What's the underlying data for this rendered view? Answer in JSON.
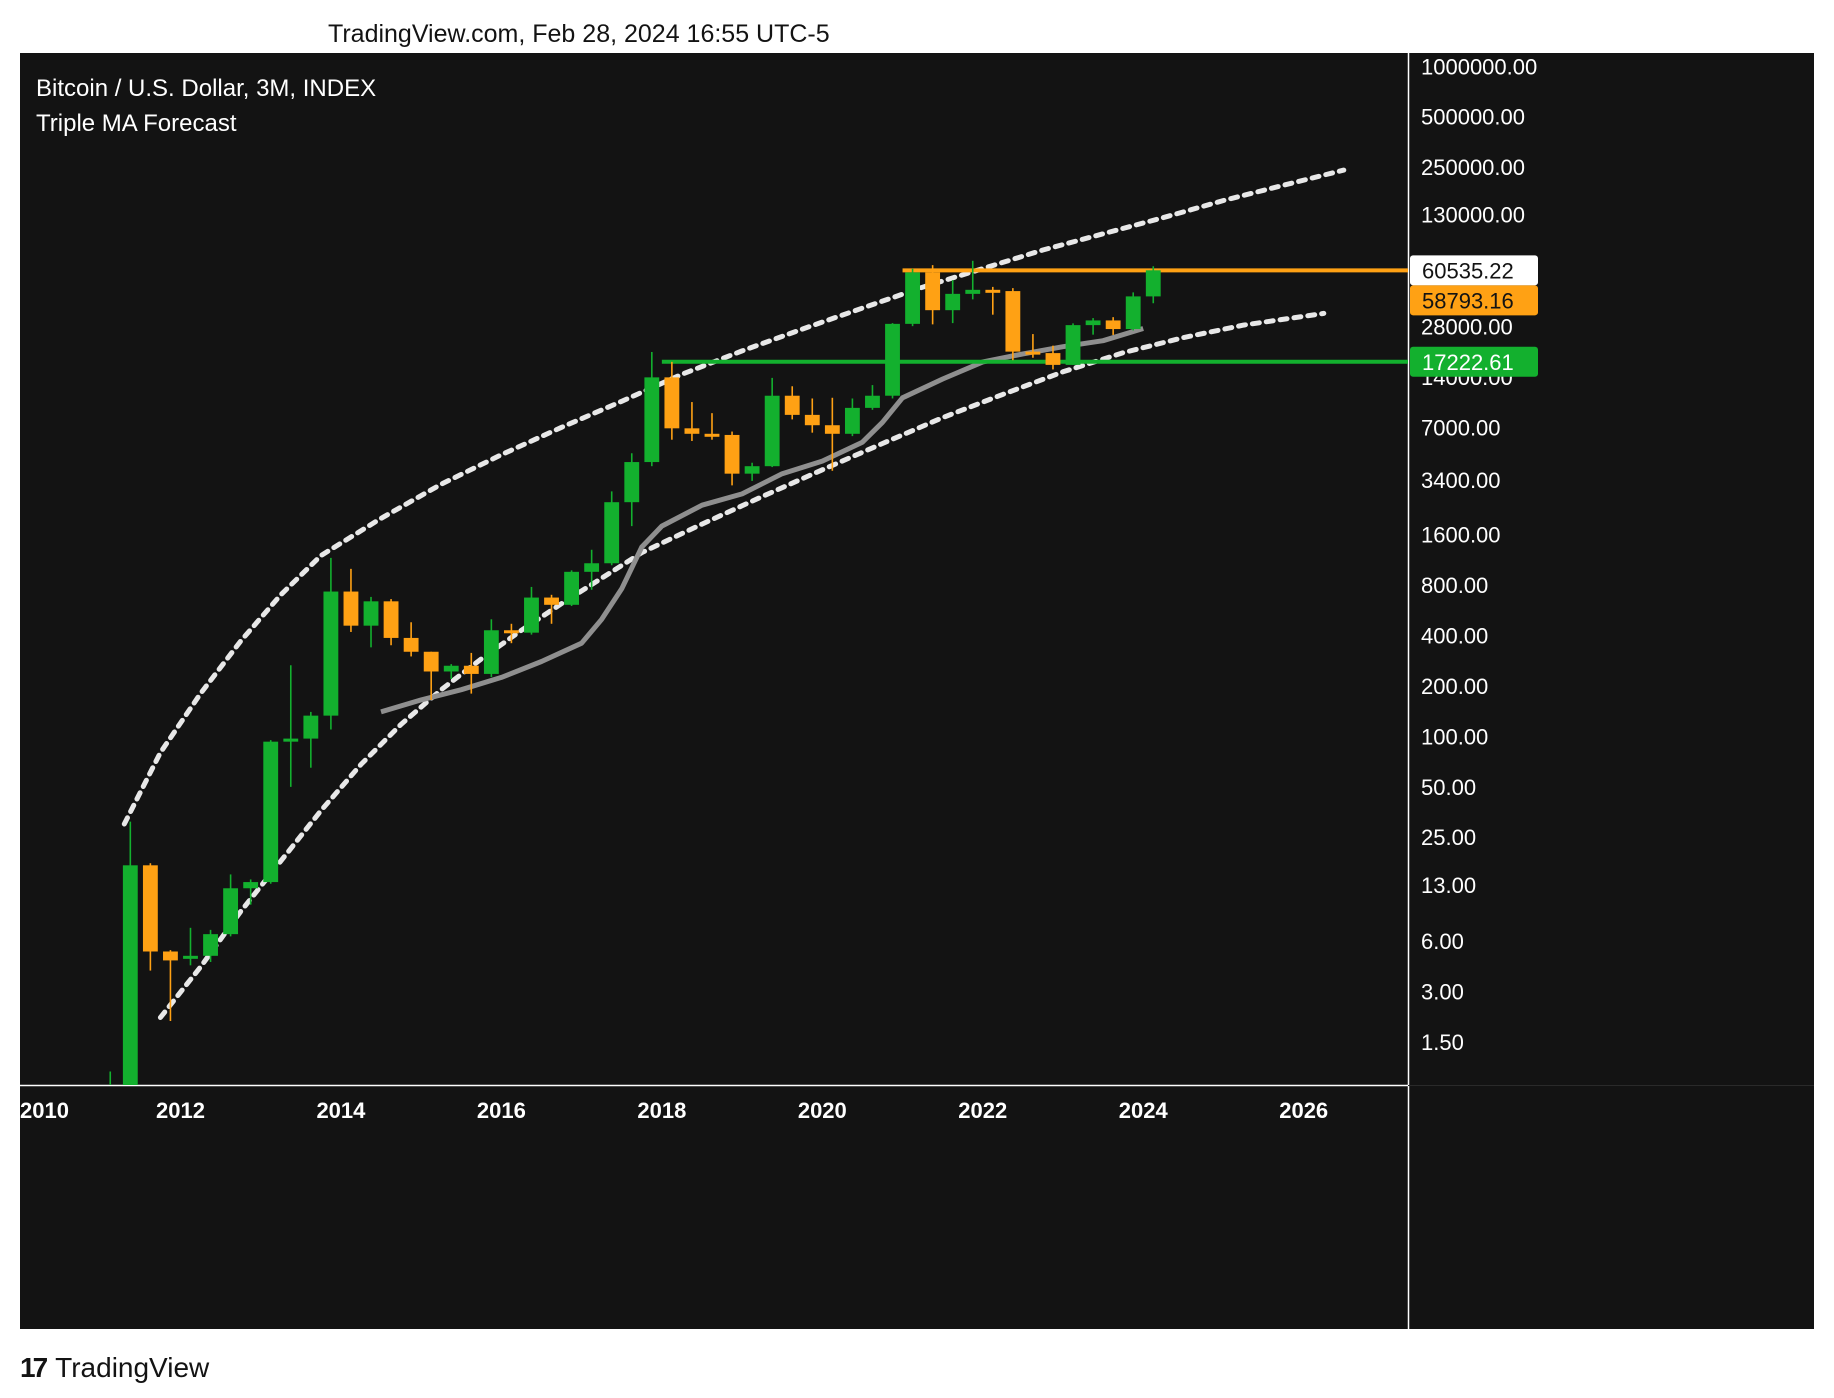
{
  "header": {
    "stamp": "TradingView.com, Feb 28, 2024 16:55 UTC-5"
  },
  "legend": {
    "symbol": "Bitcoin / U.S. Dollar, 3M, INDEX",
    "indicator": "Triple MA Forecast"
  },
  "footer": {
    "brand": "TradingView",
    "brand_mark": "17"
  },
  "colors": {
    "background": "#131313",
    "up": "#13b02e",
    "down": "#ffa114",
    "ma": "#8f8f8f",
    "band": "#e8e8e8",
    "axis_text": "#ffffff",
    "resistance": "#ffa114",
    "support": "#13b02e"
  },
  "chart_data": {
    "type": "candlestick",
    "interval": "3M",
    "y_scale": "log",
    "y_ticks": [
      1.5,
      3,
      6,
      13,
      25,
      50,
      100,
      200,
      400,
      800,
      1600,
      3400,
      7000,
      14000,
      28000,
      130000,
      250000,
      500000,
      1000000
    ],
    "y_tick_labels": [
      "1.50",
      "3.00",
      "6.00",
      "13.00",
      "25.00",
      "50.00",
      "100.00",
      "200.00",
      "400.00",
      "800.00",
      "1600.00",
      "3400.00",
      "7000.00",
      "14000.00",
      "28000.00",
      "130000.00",
      "250000.00",
      "500000.00",
      "1000000.00"
    ],
    "x_tick_labels": [
      "2010",
      "2012",
      "2014",
      "2016",
      "2018",
      "2020",
      "2022",
      "2024",
      "2026"
    ],
    "x_range": [
      2010.0,
      2027.3
    ],
    "y_range": [
      0.83,
      1200000
    ],
    "candles": [
      {
        "t": 2011.0,
        "o": 0.5,
        "h": 1.0,
        "l": 0.3,
        "c": 0.8
      },
      {
        "t": 2011.25,
        "o": 0.8,
        "h": 31.0,
        "l": 0.7,
        "c": 17.0
      },
      {
        "t": 2011.5,
        "o": 17.0,
        "h": 17.5,
        "l": 4.0,
        "c": 5.2
      },
      {
        "t": 2011.75,
        "o": 5.2,
        "h": 5.3,
        "l": 2.0,
        "c": 4.6
      },
      {
        "t": 2012.0,
        "o": 4.7,
        "h": 7.2,
        "l": 4.3,
        "c": 4.9
      },
      {
        "t": 2012.25,
        "o": 4.9,
        "h": 7.0,
        "l": 4.5,
        "c": 6.6
      },
      {
        "t": 2012.5,
        "o": 6.6,
        "h": 15.0,
        "l": 6.4,
        "c": 12.4
      },
      {
        "t": 2012.75,
        "o": 12.4,
        "h": 14.0,
        "l": 9.9,
        "c": 13.5
      },
      {
        "t": 2013.0,
        "o": 13.5,
        "h": 95.0,
        "l": 13.2,
        "c": 93.0
      },
      {
        "t": 2013.25,
        "o": 93.0,
        "h": 266.0,
        "l": 50.0,
        "c": 97.0
      },
      {
        "t": 2013.5,
        "o": 97.0,
        "h": 140.0,
        "l": 65.0,
        "c": 133.0
      },
      {
        "t": 2013.75,
        "o": 133.0,
        "h": 1163.0,
        "l": 110.0,
        "c": 732.0
      },
      {
        "t": 2014.0,
        "o": 732.0,
        "h": 1000.0,
        "l": 420.0,
        "c": 458.0
      },
      {
        "t": 2014.25,
        "o": 458.0,
        "h": 680.0,
        "l": 340.0,
        "c": 640.0
      },
      {
        "t": 2014.5,
        "o": 640.0,
        "h": 660.0,
        "l": 350.0,
        "c": 387.0
      },
      {
        "t": 2014.75,
        "o": 387.0,
        "h": 480.0,
        "l": 300.0,
        "c": 320.0
      },
      {
        "t": 2015.0,
        "o": 320.0,
        "h": 320.0,
        "l": 165.0,
        "c": 244.0
      },
      {
        "t": 2015.25,
        "o": 244.0,
        "h": 270.0,
        "l": 220.0,
        "c": 264.0
      },
      {
        "t": 2015.5,
        "o": 264.0,
        "h": 315.0,
        "l": 180.0,
        "c": 236.0
      },
      {
        "t": 2015.75,
        "o": 236.0,
        "h": 500.0,
        "l": 226.0,
        "c": 430.0
      },
      {
        "t": 2016.0,
        "o": 430.0,
        "h": 470.0,
        "l": 360.0,
        "c": 416.0
      },
      {
        "t": 2016.25,
        "o": 416.0,
        "h": 780.0,
        "l": 405.0,
        "c": 674.0
      },
      {
        "t": 2016.5,
        "o": 674.0,
        "h": 700.0,
        "l": 470.0,
        "c": 610.0
      },
      {
        "t": 2016.75,
        "o": 610.0,
        "h": 980.0,
        "l": 600.0,
        "c": 960.0
      },
      {
        "t": 2017.0,
        "o": 960.0,
        "h": 1300.0,
        "l": 750.0,
        "c": 1080.0
      },
      {
        "t": 2017.25,
        "o": 1080.0,
        "h": 2900.0,
        "l": 1050.0,
        "c": 2500.0
      },
      {
        "t": 2017.5,
        "o": 2500.0,
        "h": 4900.0,
        "l": 1800.0,
        "c": 4340.0
      },
      {
        "t": 2017.75,
        "o": 4340.0,
        "h": 19700.0,
        "l": 4100.0,
        "c": 13900.0
      },
      {
        "t": 2018.0,
        "o": 13900.0,
        "h": 17200.0,
        "l": 5900.0,
        "c": 6900.0
      },
      {
        "t": 2018.25,
        "o": 6900.0,
        "h": 9900.0,
        "l": 5800.0,
        "c": 6400.0
      },
      {
        "t": 2018.5,
        "o": 6400.0,
        "h": 8500.0,
        "l": 5900.0,
        "c": 6300.0
      },
      {
        "t": 2018.75,
        "o": 6300.0,
        "h": 6600.0,
        "l": 3150.0,
        "c": 3700.0
      },
      {
        "t": 2019.0,
        "o": 3700.0,
        "h": 4300.0,
        "l": 3350.0,
        "c": 4100.0
      },
      {
        "t": 2019.25,
        "o": 4100.0,
        "h": 13800.0,
        "l": 4050.0,
        "c": 10800.0
      },
      {
        "t": 2019.5,
        "o": 10800.0,
        "h": 12300.0,
        "l": 7800.0,
        "c": 8300.0
      },
      {
        "t": 2019.75,
        "o": 8300.0,
        "h": 10400.0,
        "l": 6500.0,
        "c": 7200.0
      },
      {
        "t": 2020.0,
        "o": 7200.0,
        "h": 10500.0,
        "l": 3850.0,
        "c": 6400.0
      },
      {
        "t": 2020.25,
        "o": 6400.0,
        "h": 10400.0,
        "l": 6200.0,
        "c": 9140.0
      },
      {
        "t": 2020.5,
        "o": 9140.0,
        "h": 12500.0,
        "l": 8900.0,
        "c": 10800.0
      },
      {
        "t": 2020.75,
        "o": 10800.0,
        "h": 29300.0,
        "l": 10400.0,
        "c": 29000.0
      },
      {
        "t": 2021.0,
        "o": 29000.0,
        "h": 61800.0,
        "l": 28100.0,
        "c": 58800.0
      },
      {
        "t": 2021.25,
        "o": 58800.0,
        "h": 65000.0,
        "l": 28800.0,
        "c": 35000.0
      },
      {
        "t": 2021.5,
        "o": 35000.0,
        "h": 52900.0,
        "l": 29300.0,
        "c": 43800.0
      },
      {
        "t": 2021.75,
        "o": 43800.0,
        "h": 69000.0,
        "l": 40600.0,
        "c": 46300.0
      },
      {
        "t": 2022.0,
        "o": 46300.0,
        "h": 48200.0,
        "l": 32900.0,
        "c": 45500.0
      },
      {
        "t": 2022.25,
        "o": 45500.0,
        "h": 47400.0,
        "l": 17600.0,
        "c": 19800.0
      },
      {
        "t": 2022.5,
        "o": 19800.0,
        "h": 25200.0,
        "l": 18200.0,
        "c": 19400.0
      },
      {
        "t": 2022.75,
        "o": 19400.0,
        "h": 21500.0,
        "l": 15500.0,
        "c": 16500.0
      },
      {
        "t": 2023.0,
        "o": 16500.0,
        "h": 29200.0,
        "l": 16500.0,
        "c": 28500.0
      },
      {
        "t": 2023.25,
        "o": 28500.0,
        "h": 31400.0,
        "l": 25000.0,
        "c": 30400.0
      },
      {
        "t": 2023.5,
        "o": 30400.0,
        "h": 31800.0,
        "l": 24900.0,
        "c": 27000.0
      },
      {
        "t": 2023.75,
        "o": 27000.0,
        "h": 44700.0,
        "l": 26500.0,
        "c": 42300.0
      },
      {
        "t": 2024.0,
        "o": 42300.0,
        "h": 64000.0,
        "l": 38500.0,
        "c": 60535.22
      }
    ],
    "ma_line": [
      [
        2014.5,
        140
      ],
      [
        2015.0,
        165
      ],
      [
        2015.5,
        190
      ],
      [
        2016.0,
        225
      ],
      [
        2016.5,
        280
      ],
      [
        2017.0,
        360
      ],
      [
        2017.25,
        500
      ],
      [
        2017.5,
        760
      ],
      [
        2017.75,
        1350
      ],
      [
        2018.0,
        1800
      ],
      [
        2018.5,
        2400
      ],
      [
        2019.0,
        2800
      ],
      [
        2019.5,
        3700
      ],
      [
        2020.0,
        4400
      ],
      [
        2020.5,
        5700
      ],
      [
        2020.75,
        7500
      ],
      [
        2021.0,
        10500
      ],
      [
        2021.5,
        13600
      ],
      [
        2022.0,
        17200
      ],
      [
        2022.5,
        19200
      ],
      [
        2023.0,
        21200
      ],
      [
        2023.5,
        23000
      ],
      [
        2024.0,
        27200
      ]
    ],
    "upper_band": [
      [
        2011.3,
        30
      ],
      [
        2011.75,
        80
      ],
      [
        2012.25,
        180
      ],
      [
        2012.75,
        370
      ],
      [
        2013.25,
        700
      ],
      [
        2013.75,
        1200
      ],
      [
        2014.5,
        2000
      ],
      [
        2015.25,
        3200
      ],
      [
        2016.0,
        4800
      ],
      [
        2016.75,
        7000
      ],
      [
        2017.5,
        10000
      ],
      [
        2018.25,
        14500
      ],
      [
        2019.0,
        20000
      ],
      [
        2019.75,
        27000
      ],
      [
        2020.5,
        36000
      ],
      [
        2021.25,
        48000
      ],
      [
        2022.0,
        62000
      ],
      [
        2022.75,
        80000
      ],
      [
        2023.5,
        100000
      ],
      [
        2024.25,
        125000
      ],
      [
        2025.0,
        158000
      ],
      [
        2025.75,
        195000
      ],
      [
        2026.5,
        240000
      ]
    ],
    "lower_band": [
      [
        2011.75,
        2.1
      ],
      [
        2012.25,
        4.2
      ],
      [
        2012.75,
        9.0
      ],
      [
        2013.25,
        18
      ],
      [
        2013.75,
        36
      ],
      [
        2014.25,
        68
      ],
      [
        2014.75,
        118
      ],
      [
        2015.25,
        190
      ],
      [
        2015.75,
        290
      ],
      [
        2016.25,
        430
      ],
      [
        2016.75,
        620
      ],
      [
        2017.25,
        880
      ],
      [
        2017.75,
        1250
      ],
      [
        2018.5,
        1850
      ],
      [
        2019.25,
        2700
      ],
      [
        2020.0,
        3900
      ],
      [
        2020.75,
        5600
      ],
      [
        2021.5,
        8000
      ],
      [
        2022.25,
        11000
      ],
      [
        2023.0,
        15000
      ],
      [
        2023.75,
        19500
      ],
      [
        2024.5,
        24000
      ],
      [
        2025.25,
        28500
      ],
      [
        2026.25,
        33500
      ]
    ],
    "resistance": {
      "value": 60535.22,
      "x_start": 2021.0,
      "label": "60535.22"
    },
    "support": {
      "value": 17222.61,
      "x_start": 2018.0,
      "label": "17222.61"
    },
    "price_labels": [
      {
        "value": 60535.22,
        "label": "60535.22",
        "style": "white"
      },
      {
        "value": 58793.16,
        "label": "58793.16",
        "style": "orange"
      },
      {
        "value": 17222.61,
        "label": "17222.61",
        "style": "green"
      }
    ]
  }
}
